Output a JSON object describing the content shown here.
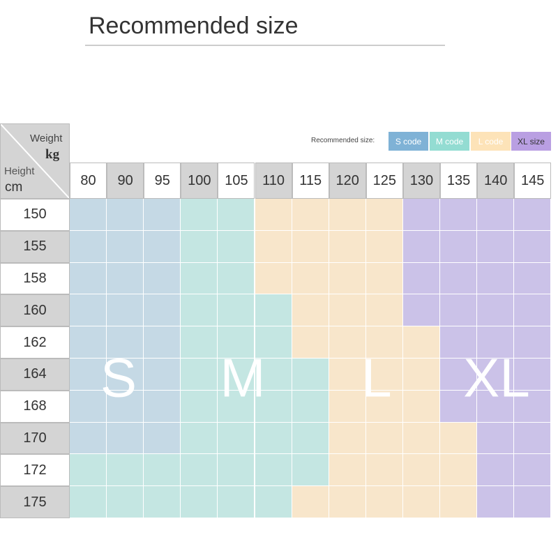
{
  "header": {
    "title": "Recommended size"
  },
  "legend": {
    "label": "Recommended size:",
    "items": [
      {
        "text": "S code",
        "color": "#7fb2d6",
        "text_color": "#ffffff"
      },
      {
        "text": "M code",
        "color": "#93dcd2",
        "text_color": "#ffffff"
      },
      {
        "text": "L code",
        "color": "#fde3b8",
        "text_color": "#ffffff"
      },
      {
        "text": "XL size",
        "color": "#b99fe2",
        "text_color": "#333333"
      }
    ]
  },
  "corner": {
    "weight": "Weight",
    "weight_unit": "kg",
    "height": "Height",
    "height_unit": "cm"
  },
  "sizes": [
    {
      "letter": "S",
      "color": "#c5d9e5"
    },
    {
      "letter": "M",
      "color": "#c4e6e2"
    },
    {
      "letter": "L",
      "color": "#f8e6cb"
    },
    {
      "letter": "XL",
      "color": "#cbc2e8"
    }
  ],
  "columns": [
    "80",
    "90",
    "95",
    "100",
    "105",
    "110",
    "115",
    "120",
    "125",
    "130",
    "135",
    "140",
    "145"
  ],
  "rows": [
    {
      "height": "150",
      "cells": [
        "S",
        "S",
        "S",
        "M",
        "M",
        "L",
        "L",
        "L",
        "L",
        "XL",
        "XL",
        "XL",
        "XL"
      ]
    },
    {
      "height": "155",
      "cells": [
        "S",
        "S",
        "S",
        "M",
        "M",
        "L",
        "L",
        "L",
        "L",
        "XL",
        "XL",
        "XL",
        "XL"
      ]
    },
    {
      "height": "158",
      "cells": [
        "S",
        "S",
        "S",
        "M",
        "M",
        "L",
        "L",
        "L",
        "L",
        "XL",
        "XL",
        "XL",
        "XL"
      ]
    },
    {
      "height": "160",
      "cells": [
        "S",
        "S",
        "S",
        "M",
        "M",
        "M",
        "L",
        "L",
        "L",
        "XL",
        "XL",
        "XL",
        "XL"
      ]
    },
    {
      "height": "162",
      "cells": [
        "S",
        "S",
        "S",
        "M",
        "M",
        "M",
        "L",
        "L",
        "L",
        "L",
        "XL",
        "XL",
        "XL"
      ]
    },
    {
      "height": "164",
      "cells": [
        "S",
        "S",
        "S",
        "M",
        "M",
        "M",
        "M",
        "L",
        "L",
        "L",
        "XL",
        "XL",
        "XL"
      ]
    },
    {
      "height": "168",
      "cells": [
        "S",
        "S",
        "S",
        "M",
        "M",
        "M",
        "M",
        "L",
        "L",
        "L",
        "XL",
        "XL",
        "XL"
      ]
    },
    {
      "height": "170",
      "cells": [
        "S",
        "S",
        "S",
        "M",
        "M",
        "M",
        "M",
        "L",
        "L",
        "L",
        "L",
        "XL",
        "XL"
      ]
    },
    {
      "height": "172",
      "cells": [
        "M",
        "M",
        "M",
        "M",
        "M",
        "M",
        "M",
        "L",
        "L",
        "L",
        "L",
        "XL",
        "XL"
      ]
    },
    {
      "height": "175",
      "cells": [
        "M",
        "M",
        "M",
        "M",
        "M",
        "M",
        "L",
        "L",
        "L",
        "L",
        "L",
        "XL",
        "XL"
      ]
    }
  ]
}
